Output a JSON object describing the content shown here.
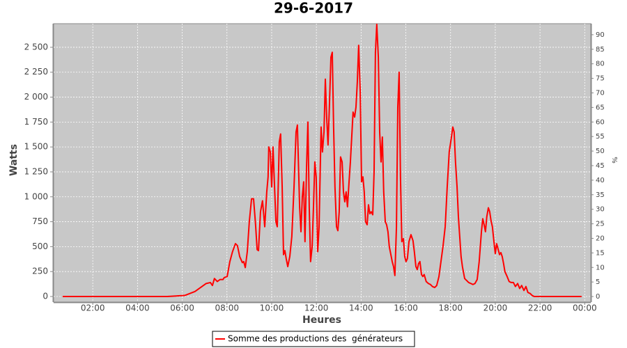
{
  "chart_data": {
    "type": "line",
    "title": "29-6-2017",
    "x_label": "Heures",
    "y_label": "Watts",
    "y2_label": "%",
    "grid": true,
    "legend": "bottom",
    "xlim": [
      0.25,
      24.27
    ],
    "xticks": [
      {
        "value": 2,
        "label": "02:00"
      },
      {
        "value": 4,
        "label": "04:00"
      },
      {
        "value": 6,
        "label": "06:00"
      },
      {
        "value": 8,
        "label": "08:00"
      },
      {
        "value": 10,
        "label": "10:00"
      },
      {
        "value": 12,
        "label": "12:00"
      },
      {
        "value": 14,
        "label": "14:00"
      },
      {
        "value": 16,
        "label": "16:00"
      },
      {
        "value": 18,
        "label": "18:00"
      },
      {
        "value": 20,
        "label": "20:00"
      },
      {
        "value": 22,
        "label": "22:00"
      },
      {
        "value": 24,
        "label": "00:00"
      }
    ],
    "ylim": [
      -56,
      2737
    ],
    "yticks": [
      0,
      250,
      500,
      750,
      {
        "value": 1000,
        "label": "1 000"
      },
      {
        "value": 1250,
        "label": "1 250"
      },
      {
        "value": 1500,
        "label": "1 500"
      },
      {
        "value": 1750,
        "label": "1 750"
      },
      {
        "value": 2000,
        "label": "2 000"
      },
      {
        "value": 2250,
        "label": "2 250"
      },
      {
        "value": 2500,
        "label": "2 500"
      }
    ],
    "y2lim": [
      -1.9,
      93.8
    ],
    "y2ticks": [
      0,
      5,
      10,
      15,
      20,
      25,
      30,
      35,
      40,
      45,
      50,
      55,
      60,
      65,
      70,
      75,
      80,
      85,
      90
    ],
    "x": [
      0.65,
      5.33,
      6.11,
      6.57,
      6.88,
      7.07,
      7.26,
      7.35,
      7.44,
      7.57,
      7.69,
      7.82,
      7.88,
      8.01,
      8.13,
      8.25,
      8.38,
      8.47,
      8.57,
      8.69,
      8.75,
      8.82,
      8.91,
      9.0,
      9.1,
      9.19,
      9.28,
      9.35,
      9.41,
      9.5,
      9.59,
      9.69,
      9.78,
      9.84,
      9.87,
      9.94,
      10.0,
      10.06,
      10.12,
      10.19,
      10.25,
      10.34,
      10.4,
      10.47,
      10.53,
      10.59,
      10.65,
      10.72,
      10.81,
      10.9,
      11.0,
      11.09,
      11.15,
      11.25,
      11.31,
      11.37,
      11.43,
      11.49,
      11.56,
      11.62,
      11.68,
      11.74,
      11.81,
      11.87,
      11.93,
      11.99,
      12.06,
      12.12,
      12.21,
      12.27,
      12.34,
      12.4,
      12.46,
      12.52,
      12.58,
      12.65,
      12.71,
      12.77,
      12.83,
      12.9,
      12.96,
      13.02,
      13.08,
      13.15,
      13.21,
      13.27,
      13.33,
      13.39,
      13.46,
      13.52,
      13.58,
      13.64,
      13.71,
      13.77,
      13.83,
      13.89,
      13.96,
      14.02,
      14.08,
      14.14,
      14.2,
      14.27,
      14.33,
      14.39,
      14.45,
      14.52,
      14.58,
      14.64,
      14.7,
      14.77,
      14.83,
      14.89,
      14.95,
      15.01,
      15.08,
      15.14,
      15.2,
      15.26,
      15.33,
      15.39,
      15.45,
      15.51,
      15.58,
      15.64,
      15.7,
      15.76,
      15.82,
      15.89,
      15.95,
      16.01,
      16.07,
      16.14,
      16.23,
      16.32,
      16.38,
      16.45,
      16.51,
      16.57,
      16.63,
      16.7,
      16.76,
      16.82,
      16.91,
      17.01,
      17.1,
      17.19,
      17.29,
      17.38,
      17.48,
      17.57,
      17.66,
      17.76,
      17.85,
      17.94,
      18.04,
      18.1,
      18.16,
      18.22,
      18.29,
      18.35,
      18.41,
      18.47,
      18.53,
      18.63,
      18.72,
      18.81,
      18.91,
      19.0,
      19.09,
      19.19,
      19.28,
      19.38,
      19.44,
      19.5,
      19.56,
      19.62,
      19.69,
      19.75,
      19.81,
      19.87,
      19.94,
      20.0,
      20.06,
      20.12,
      20.19,
      20.25,
      20.31,
      20.37,
      20.43,
      20.53,
      20.62,
      20.71,
      20.81,
      20.9,
      21.0,
      21.09,
      21.18,
      21.28,
      21.37,
      21.46,
      21.56,
      21.65,
      21.74,
      23.86
    ],
    "series": [
      {
        "name": "Somme des productions des  générateurs",
        "color": "#ff0000",
        "values": [
          0,
          0,
          10,
          50,
          100,
          130,
          140,
          110,
          180,
          150,
          170,
          170,
          190,
          200,
          350,
          450,
          530,
          510,
          400,
          340,
          350,
          290,
          450,
          750,
          980,
          980,
          720,
          470,
          460,
          850,
          960,
          700,
          1050,
          1200,
          1500,
          1450,
          1100,
          1500,
          1150,
          750,
          700,
          1550,
          1630,
          1100,
          420,
          460,
          380,
          300,
          400,
          600,
          1100,
          1650,
          1720,
          900,
          650,
          1000,
          1150,
          550,
          1300,
          1750,
          900,
          350,
          500,
          900,
          1350,
          1200,
          450,
          700,
          1700,
          1450,
          1650,
          2180,
          1800,
          1520,
          1900,
          2400,
          2450,
          1700,
          1100,
          700,
          660,
          850,
          1400,
          1350,
          1050,
          950,
          1050,
          900,
          1150,
          1350,
          1600,
          1850,
          1800,
          1900,
          2150,
          2520,
          2050,
          1150,
          1200,
          1050,
          750,
          720,
          920,
          830,
          850,
          820,
          1250,
          2450,
          2730,
          2400,
          1650,
          1350,
          1600,
          1050,
          750,
          720,
          650,
          500,
          420,
          350,
          300,
          210,
          700,
          1900,
          2250,
          1200,
          550,
          580,
          400,
          350,
          380,
          550,
          620,
          560,
          450,
          300,
          270,
          330,
          350,
          220,
          200,
          220,
          150,
          130,
          120,
          100,
          90,
          110,
          200,
          350,
          500,
          700,
          1100,
          1450,
          1600,
          1700,
          1650,
          1350,
          1100,
          800,
          600,
          400,
          300,
          180,
          160,
          140,
          130,
          120,
          130,
          170,
          350,
          650,
          780,
          720,
          650,
          800,
          890,
          850,
          760,
          700,
          550,
          430,
          530,
          480,
          420,
          440,
          400,
          330,
          250,
          200,
          150,
          140,
          140,
          100,
          130,
          80,
          110,
          60,
          100,
          40,
          30,
          10,
          0,
          0
        ]
      }
    ]
  }
}
